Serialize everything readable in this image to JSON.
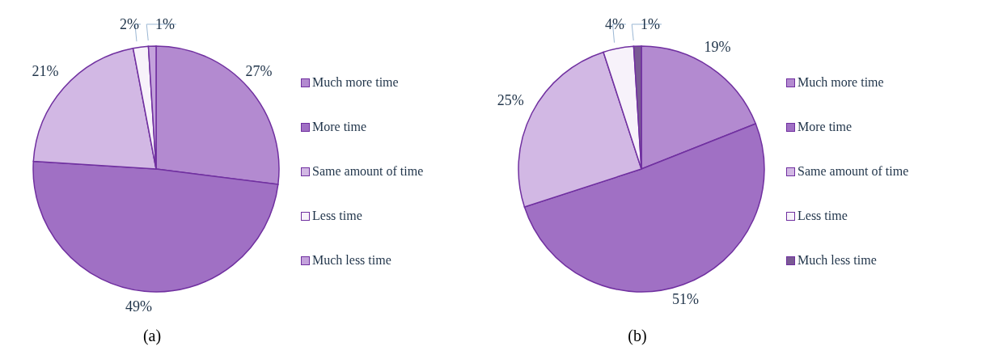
{
  "chart_data": [
    {
      "type": "pie",
      "title": "(a)",
      "categories": [
        "Much more time",
        "More time",
        "Same amount of time",
        "Less time",
        "Much less time"
      ],
      "values": [
        27,
        49,
        21,
        2,
        1
      ],
      "value_labels": [
        "27%",
        "49%",
        "21%",
        "2%",
        "1%"
      ],
      "colors": [
        "#b38ad0",
        "#a070c4",
        "#d2b8e4",
        "#f7f2fa",
        "#c4a2dc"
      ],
      "legend": "right"
    },
    {
      "type": "pie",
      "title": "(b)",
      "categories": [
        "Much more time",
        "More time",
        "Same amount of time",
        "Less time",
        "Much less time"
      ],
      "values": [
        19,
        51,
        25,
        4,
        1
      ],
      "value_labels": [
        "19%",
        "51%",
        "25%",
        "4%",
        "1%"
      ],
      "colors": [
        "#b38ad0",
        "#a070c4",
        "#d2b8e4",
        "#f7f2fa",
        "#7a5a94"
      ],
      "legend": "right"
    }
  ]
}
